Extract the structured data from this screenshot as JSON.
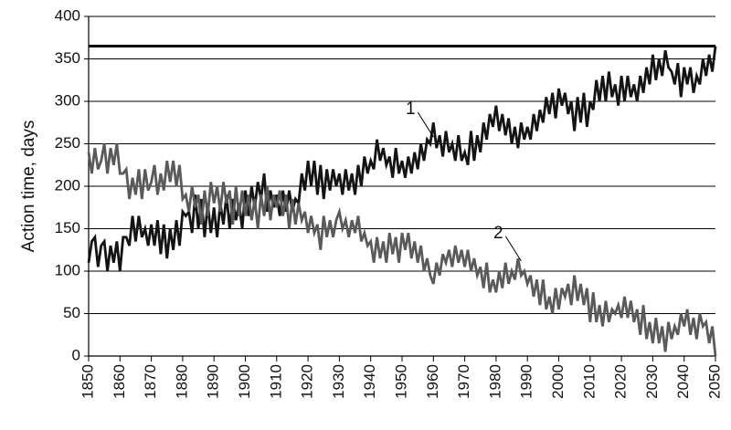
{
  "chart_data": {
    "type": "line",
    "y_label": "Action time, days",
    "xlim": [
      1850,
      2050
    ],
    "xticks": [
      1850,
      1860,
      1870,
      1880,
      1890,
      1900,
      1910,
      1920,
      1930,
      1940,
      1950,
      1960,
      1970,
      1980,
      1990,
      2000,
      2010,
      2020,
      2030,
      2040,
      2050
    ],
    "ylim": [
      0,
      400
    ],
    "yticks": [
      0,
      50,
      100,
      150,
      200,
      250,
      300,
      350,
      400
    ],
    "grid": true,
    "hlines": [
      {
        "value": 365,
        "color": "#000000"
      }
    ],
    "x": [
      1850,
      1851,
      1852,
      1853,
      1854,
      1855,
      1856,
      1857,
      1858,
      1859,
      1860,
      1861,
      1862,
      1863,
      1864,
      1865,
      1866,
      1867,
      1868,
      1869,
      1870,
      1871,
      1872,
      1873,
      1874,
      1875,
      1876,
      1877,
      1878,
      1879,
      1880,
      1881,
      1882,
      1883,
      1884,
      1885,
      1886,
      1887,
      1888,
      1889,
      1890,
      1891,
      1892,
      1893,
      1894,
      1895,
      1896,
      1897,
      1898,
      1899,
      1900,
      1901,
      1902,
      1903,
      1904,
      1905,
      1906,
      1907,
      1908,
      1909,
      1910,
      1911,
      1912,
      1913,
      1914,
      1915,
      1916,
      1917,
      1918,
      1919,
      1920,
      1921,
      1922,
      1923,
      1924,
      1925,
      1926,
      1927,
      1928,
      1929,
      1930,
      1931,
      1932,
      1933,
      1934,
      1935,
      1936,
      1937,
      1938,
      1939,
      1940,
      1941,
      1942,
      1943,
      1944,
      1945,
      1946,
      1947,
      1948,
      1949,
      1950,
      1951,
      1952,
      1953,
      1954,
      1955,
      1956,
      1957,
      1958,
      1959,
      1960,
      1961,
      1962,
      1963,
      1964,
      1965,
      1966,
      1967,
      1968,
      1969,
      1970,
      1971,
      1972,
      1973,
      1974,
      1975,
      1976,
      1977,
      1978,
      1979,
      1980,
      1981,
      1982,
      1983,
      1984,
      1985,
      1986,
      1987,
      1988,
      1989,
      1990,
      1991,
      1992,
      1993,
      1994,
      1995,
      1996,
      1997,
      1998,
      1999,
      2000,
      2001,
      2002,
      2003,
      2004,
      2005,
      2006,
      2007,
      2008,
      2009,
      2010,
      2011,
      2012,
      2013,
      2014,
      2015,
      2016,
      2017,
      2018,
      2019,
      2020,
      2021,
      2022,
      2023,
      2024,
      2025,
      2026,
      2027,
      2028,
      2029,
      2030,
      2031,
      2032,
      2033,
      2034,
      2035,
      2036,
      2037,
      2038,
      2039,
      2040,
      2041,
      2042,
      2043,
      2044,
      2045,
      2046,
      2047,
      2048,
      2049,
      2050
    ],
    "series": [
      {
        "color": "#141414",
        "values": [
          110,
          135,
          140,
          105,
          130,
          135,
          100,
          130,
          110,
          135,
          100,
          140,
          140,
          130,
          165,
          135,
          165,
          140,
          150,
          130,
          155,
          130,
          160,
          120,
          155,
          115,
          150,
          125,
          160,
          130,
          170,
          165,
          170,
          145,
          190,
          150,
          185,
          140,
          180,
          145,
          175,
          140,
          180,
          155,
          190,
          150,
          185,
          160,
          180,
          150,
          195,
          165,
          200,
          175,
          205,
          185,
          215,
          170,
          195,
          175,
          190,
          165,
          195,
          170,
          195,
          170,
          185,
          180,
          215,
          195,
          230,
          200,
          230,
          190,
          225,
          185,
          220,
          195,
          220,
          200,
          215,
          190,
          220,
          195,
          215,
          190,
          225,
          200,
          235,
          215,
          230,
          220,
          255,
          230,
          245,
          225,
          235,
          210,
          245,
          215,
          230,
          210,
          235,
          215,
          240,
          220,
          250,
          230,
          255,
          250,
          275,
          245,
          260,
          235,
          265,
          240,
          250,
          230,
          260,
          230,
          240,
          225,
          265,
          230,
          260,
          240,
          275,
          255,
          285,
          270,
          295,
          265,
          285,
          260,
          280,
          250,
          270,
          245,
          275,
          255,
          270,
          255,
          285,
          265,
          290,
          275,
          305,
          285,
          310,
          280,
          315,
          295,
          310,
          285,
          300,
          265,
          305,
          275,
          310,
          270,
          300,
          290,
          325,
          300,
          330,
          300,
          335,
          305,
          320,
          295,
          330,
          300,
          330,
          305,
          320,
          300,
          330,
          310,
          340,
          320,
          355,
          325,
          350,
          330,
          360,
          340,
          335,
          320,
          345,
          305,
          340,
          320,
          340,
          310,
          330,
          320,
          350,
          330,
          355,
          335,
          365
        ]
      },
      {
        "color": "#5a5a5a",
        "values": [
          240,
          215,
          245,
          220,
          230,
          250,
          215,
          245,
          225,
          250,
          215,
          215,
          220,
          185,
          210,
          190,
          220,
          185,
          220,
          195,
          205,
          225,
          190,
          215,
          195,
          230,
          205,
          230,
          200,
          225,
          185,
          190,
          170,
          200,
          175,
          190,
          155,
          195,
          165,
          205,
          180,
          200,
          170,
          205,
          180,
          195,
          155,
          200,
          165,
          195,
          165,
          190,
          160,
          185,
          150,
          190,
          165,
          200,
          160,
          190,
          175,
          195,
          165,
          190,
          150,
          185,
          155,
          180,
          160,
          170,
          145,
          165,
          145,
          155,
          125,
          165,
          140,
          160,
          140,
          160,
          170,
          150,
          160,
          140,
          160,
          145,
          165,
          135,
          145,
          130,
          135,
          110,
          140,
          115,
          135,
          110,
          145,
          120,
          140,
          110,
          145,
          125,
          145,
          115,
          135,
          110,
          130,
          100,
          115,
          95,
          85,
          110,
          95,
          120,
          110,
          125,
          105,
          130,
          110,
          125,
          105,
          125,
          100,
          115,
          95,
          105,
          80,
          110,
          75,
          90,
          75,
          100,
          80,
          110,
          85,
          100,
          90,
          115,
          95,
          100,
          85,
          95,
          70,
          90,
          60,
          90,
          55,
          70,
          50,
          80,
          55,
          80,
          70,
          85,
          60,
          95,
          65,
          85,
          60,
          80,
          40,
          75,
          40,
          60,
          35,
          65,
          40,
          55,
          50,
          60,
          45,
          70,
          45,
          65,
          40,
          55,
          25,
          60,
          20,
          40,
          15,
          45,
          15,
          35,
          5,
          40,
          20,
          35,
          25,
          50,
          35,
          55,
          25,
          45,
          20,
          50,
          35,
          40,
          15,
          35,
          0
        ]
      }
    ],
    "annotations": [
      {
        "text": "1",
        "x": 1960,
        "y": 258
      },
      {
        "text": "2",
        "x": 1988,
        "y": 112
      }
    ]
  }
}
